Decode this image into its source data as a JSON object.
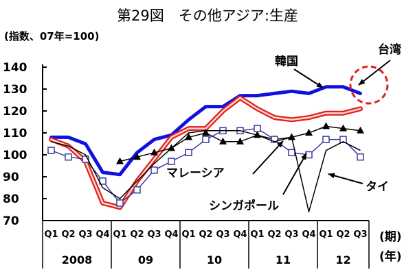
{
  "chart_data": {
    "type": "line",
    "title": "第29図　その他アジア:生産",
    "ylabel": "(指数、07年=100)",
    "ylim": [
      70,
      140
    ],
    "yticks": [
      70,
      80,
      90,
      100,
      110,
      120,
      130,
      140
    ],
    "x_quarter_labels": [
      "Q1",
      "Q2",
      "Q3",
      "Q4",
      "Q1",
      "Q2",
      "Q3",
      "Q4",
      "Q1",
      "Q2",
      "Q3",
      "Q4",
      "Q1",
      "Q2",
      "Q3",
      "Q4",
      "Q1",
      "Q2",
      "Q3"
    ],
    "x_year_labels": [
      "2008",
      "09",
      "10",
      "11",
      "12"
    ],
    "x_axis_unit_period": "(期)",
    "x_axis_unit_year": "(年)",
    "x": [
      "2008Q1",
      "2008Q2",
      "2008Q3",
      "2008Q4",
      "2009Q1",
      "2009Q2",
      "2009Q3",
      "2009Q4",
      "2010Q1",
      "2010Q2",
      "2010Q3",
      "2010Q4",
      "2011Q1",
      "2011Q2",
      "2011Q3",
      "2011Q4",
      "2012Q1",
      "2012Q2",
      "2012Q3"
    ],
    "series": [
      {
        "name": "韓国",
        "color": "#1010e0",
        "style": "thick-line",
        "values": [
          108,
          108,
          105,
          92,
          91,
          101,
          107,
          109,
          116,
          122,
          122,
          127,
          127,
          128,
          129,
          128,
          131,
          131,
          128
        ]
      },
      {
        "name": "台湾",
        "color": "#e0201a",
        "style": "double-red-line",
        "values": [
          107,
          104,
          97,
          78,
          76,
          88,
          98,
          108,
          112,
          112,
          120,
          126,
          121,
          117,
          116,
          117,
          119,
          119,
          121
        ]
      },
      {
        "name": "マレーシア",
        "color": "#000000",
        "style": "triangle-markers",
        "values": [
          null,
          null,
          null,
          null,
          97,
          99,
          101,
          103,
          108,
          110,
          106,
          106,
          109,
          107,
          108,
          110,
          113,
          112,
          111
        ]
      },
      {
        "name": "シンガポール",
        "color": "#3a3aa0",
        "style": "square-markers",
        "values": [
          102,
          99,
          98,
          88,
          78,
          84,
          93,
          97,
          101,
          107,
          111,
          111,
          112,
          107,
          101,
          100,
          107,
          107,
          99
        ]
      },
      {
        "name": "タイ",
        "color": "#000000",
        "style": "thin-line",
        "values": [
          106,
          104,
          100,
          85,
          80,
          88,
          96,
          103,
          110,
          111,
          111,
          111,
          109,
          106,
          108,
          74,
          102,
          106,
          102
        ]
      }
    ],
    "annotations": [
      {
        "text": "韓国",
        "target_series": "韓国"
      },
      {
        "text": "台湾",
        "target_series": "台湾",
        "highlight": "red dashed circle"
      },
      {
        "text": "マレーシア",
        "target_series": "マレーシア"
      },
      {
        "text": "シンガポール",
        "target_series": "シンガポール"
      },
      {
        "text": "タイ",
        "target_series": "タイ"
      }
    ],
    "grid": false,
    "legend": "none (series labelled directly with arrows)"
  }
}
